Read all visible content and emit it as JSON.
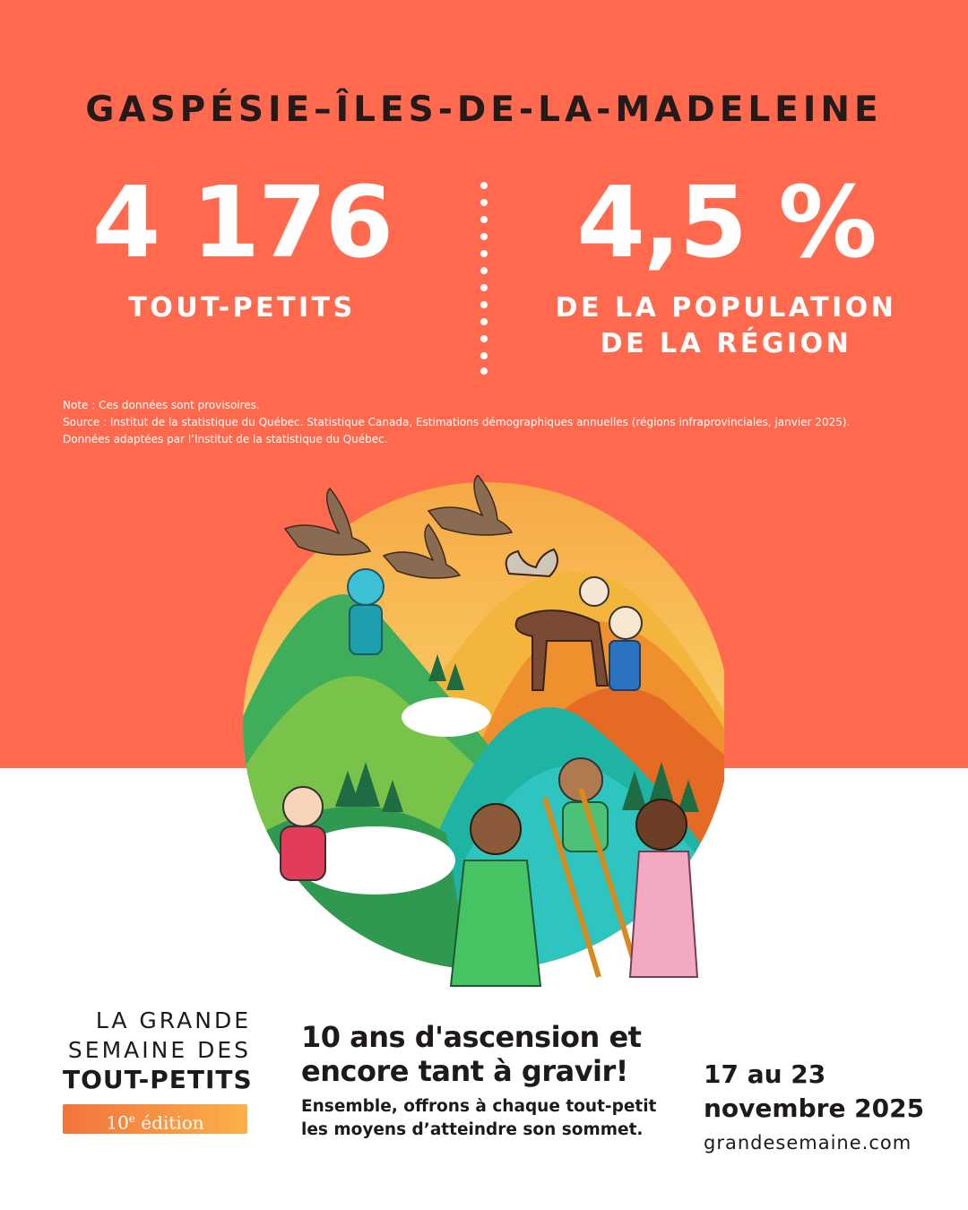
{
  "header": {
    "region": "GASPÉSIE–ÎLES-DE-LA-MADELEINE"
  },
  "stats": {
    "children_count": "4 176",
    "children_label": "TOUT-PETITS",
    "population_share": "4,5 %",
    "population_label_line1": "DE LA POPULATION",
    "population_label_line2": "DE LA RÉGION"
  },
  "notes": {
    "line1": "Note : Ces données sont provisoires.",
    "line2": "Source : Institut de la statistique du Québec. Statistique Canada, Estimations démographiques annuelles (régions infraprovinciales, janvier 2025).",
    "line3": "Données adaptées par l’Institut de la statistique du Québec."
  },
  "brand": {
    "line1": "LA GRANDE",
    "line2": "SEMAINE DES",
    "line3": "TOUT-PETITS",
    "edition_number": "10",
    "edition_sup": "e",
    "edition_word": " édition"
  },
  "tagline": {
    "headline_line1": "10 ans d'ascension et",
    "headline_line2": "encore tant à gravir!",
    "sub_line1": "Ensemble, offrons à chaque tout-petit",
    "sub_line2": "les moyens d’atteindre son sommet."
  },
  "event": {
    "dates_line1": "17 au 23",
    "dates_line2": "novembre 2025",
    "website": "grandesemaine.com"
  },
  "colors": {
    "top_background": "#ff6a4f",
    "edition_gradient_start": "#f2743c",
    "edition_gradient_end": "#fbb04a"
  }
}
